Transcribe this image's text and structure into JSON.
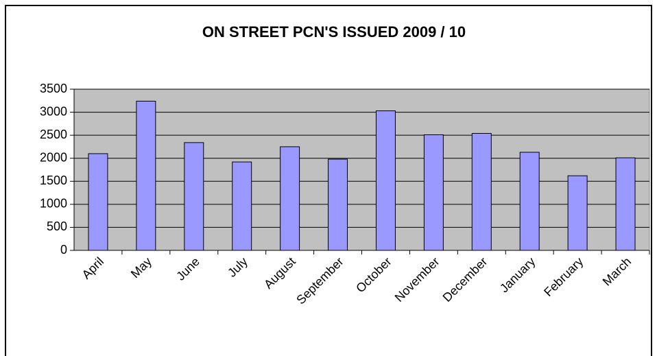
{
  "chart_data": {
    "type": "bar",
    "title": "ON STREET PCN'S ISSUED 2009 / 10",
    "categories": [
      "April",
      "May",
      "June",
      "July",
      "August",
      "September",
      "October",
      "November",
      "December",
      "January",
      "February",
      "March"
    ],
    "values": [
      2100,
      3240,
      2340,
      1920,
      2250,
      1980,
      3030,
      2510,
      2540,
      2130,
      1620,
      2010
    ],
    "color": "#9999ff",
    "ylim": [
      0,
      3500
    ],
    "yticks": [
      0,
      500,
      1000,
      1500,
      2000,
      2500,
      3000,
      3500
    ],
    "grid": true
  }
}
